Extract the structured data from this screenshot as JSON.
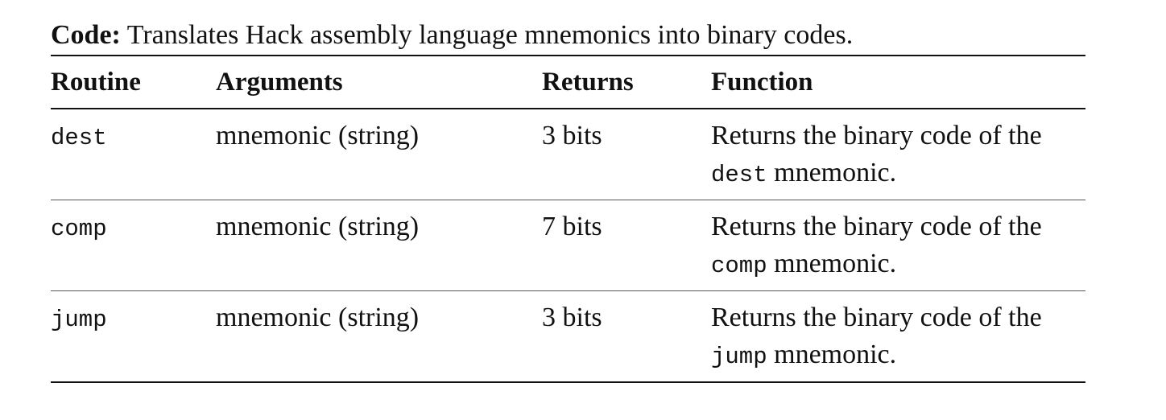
{
  "caption": {
    "lead": "Code:",
    "text": "Translates Hack assembly language mnemonics into binary codes."
  },
  "table": {
    "headers": [
      "Routine",
      "Arguments",
      "Returns",
      "Function"
    ],
    "rows": [
      {
        "routine": "dest",
        "arguments": "mnemonic (string)",
        "returns": "3 bits",
        "function_line1": "Returns the binary code of the",
        "function_code": "dest",
        "function_tail": "mnemonic."
      },
      {
        "routine": "comp",
        "arguments": "mnemonic (string)",
        "returns": "7 bits",
        "function_line1": "Returns the binary code of the",
        "function_code": "comp",
        "function_tail": "mnemonic."
      },
      {
        "routine": "jump",
        "arguments": "mnemonic (string)",
        "returns": "3 bits",
        "function_line1": "Returns the binary code of the",
        "function_code": "jump",
        "function_tail": "mnemonic."
      }
    ]
  }
}
